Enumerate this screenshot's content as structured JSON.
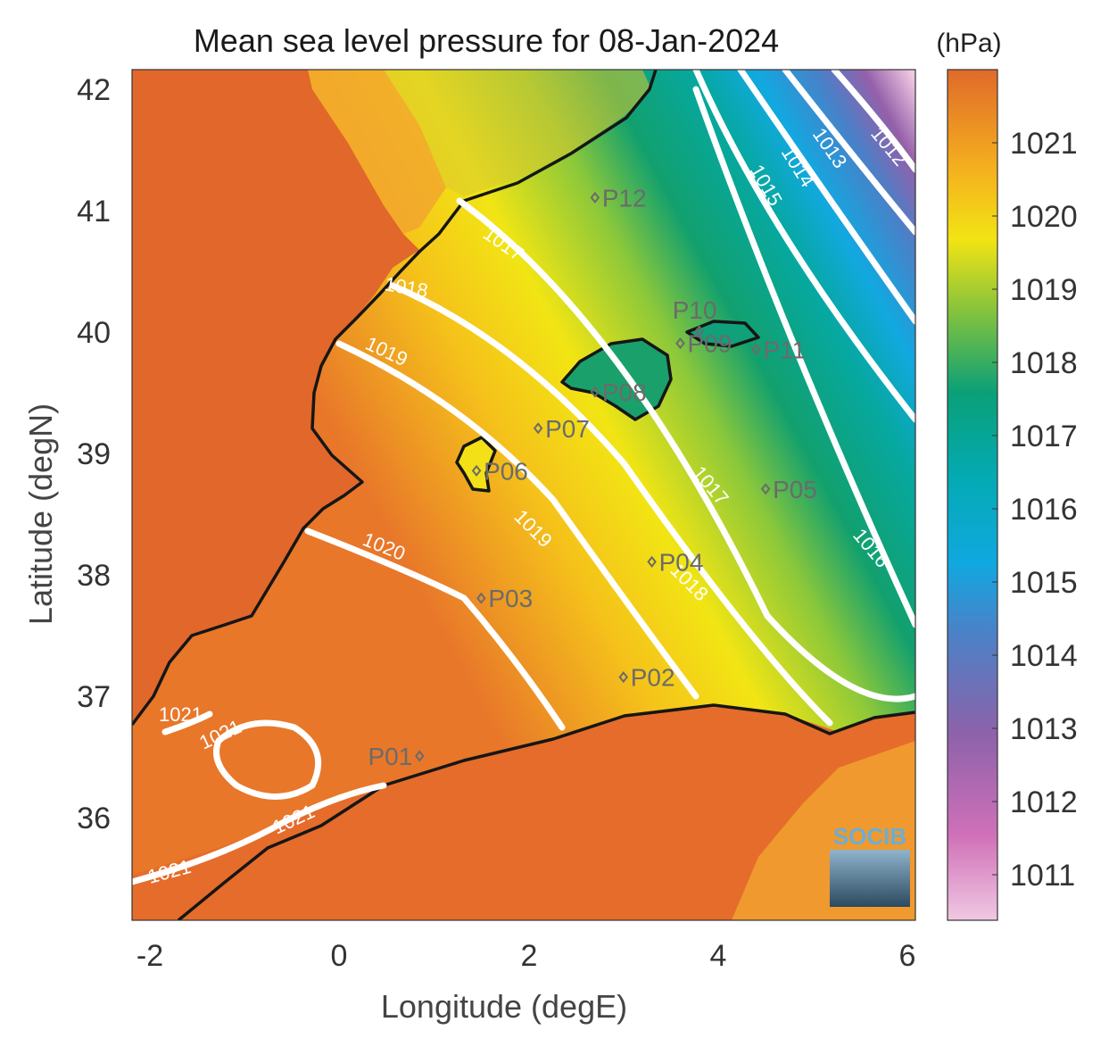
{
  "title": "Mean sea level pressure for 08-Jan-2024",
  "xlabel": "Longitude (degE)",
  "ylabel": "Latitude (degN)",
  "colorbar": {
    "unit": "(hPa)",
    "ticks": [
      "1011",
      "1012",
      "1013",
      "1014",
      "1015",
      "1016",
      "1017",
      "1018",
      "1019",
      "1020",
      "1021"
    ]
  },
  "x_ticks": [
    "-2",
    "0",
    "2",
    "4",
    "6"
  ],
  "y_ticks": [
    "36",
    "37",
    "38",
    "39",
    "40",
    "41",
    "42"
  ],
  "isobar_labels": [
    "1012",
    "1013",
    "1014",
    "1015",
    "1016",
    "1017",
    "1017",
    "1018",
    "1018",
    "1019",
    "1019",
    "1020",
    "1021",
    "1021",
    "1021",
    "1021"
  ],
  "stations": [
    {
      "id": "P01",
      "lon": 0.85,
      "lat": 36.5
    },
    {
      "id": "P02",
      "lon": 3.0,
      "lat": 37.15
    },
    {
      "id": "P03",
      "lon": 1.5,
      "lat": 37.8
    },
    {
      "id": "P04",
      "lon": 3.3,
      "lat": 38.1
    },
    {
      "id": "P05",
      "lon": 4.5,
      "lat": 38.7
    },
    {
      "id": "P06",
      "lon": 1.45,
      "lat": 38.85
    },
    {
      "id": "P07",
      "lon": 2.1,
      "lat": 39.2
    },
    {
      "id": "P08",
      "lon": 2.7,
      "lat": 39.5
    },
    {
      "id": "P09",
      "lon": 3.6,
      "lat": 39.9
    },
    {
      "id": "P10",
      "lon": 3.8,
      "lat": 40.0
    },
    {
      "id": "P11",
      "lon": 4.4,
      "lat": 39.85
    },
    {
      "id": "P12",
      "lon": 2.7,
      "lat": 41.1
    }
  ],
  "logo": "SOCIB",
  "colors": {
    "high": "#e06a2a",
    "mid": "#f5e012",
    "low_green": "#10a070",
    "low_cyan": "#00b4c8",
    "low_purple": "#9060a8",
    "lowest": "#f0c8e0"
  }
}
